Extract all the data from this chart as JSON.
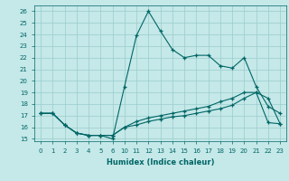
{
  "xlabel": "Humidex (Indice chaleur)",
  "bg_color": "#c5e8e8",
  "line_color": "#006666",
  "grid_color": "#99cccc",
  "ylim": [
    14.8,
    26.5
  ],
  "yticks": [
    15,
    16,
    17,
    18,
    19,
    20,
    21,
    22,
    23,
    24,
    25,
    26
  ],
  "xtick_labels": [
    "0",
    "1",
    "2",
    "3",
    "4",
    "5",
    "6",
    "10",
    "11",
    "12",
    "13",
    "14",
    "15",
    "16",
    "17",
    "18",
    "19",
    "20",
    "21",
    "22",
    "23"
  ],
  "line1_y": [
    17.2,
    17.2,
    16.2,
    15.5,
    15.3,
    15.3,
    15.0,
    19.5,
    23.9,
    26.0,
    24.3,
    22.7,
    22.0,
    22.2,
    22.2,
    21.3,
    21.1,
    22.0,
    19.5,
    17.8,
    17.2
  ],
  "line2_y": [
    17.2,
    17.2,
    16.2,
    15.5,
    15.3,
    15.3,
    15.3,
    16.0,
    16.5,
    16.8,
    17.0,
    17.2,
    17.4,
    17.6,
    17.8,
    18.2,
    18.5,
    19.0,
    19.0,
    16.4,
    16.3
  ],
  "line3_y": [
    17.2,
    17.2,
    16.2,
    15.5,
    15.3,
    15.3,
    15.3,
    16.0,
    16.2,
    16.5,
    16.7,
    16.9,
    17.0,
    17.2,
    17.4,
    17.6,
    17.9,
    18.5,
    19.0,
    18.5,
    16.3
  ],
  "figsize": [
    3.2,
    2.0
  ],
  "dpi": 100
}
